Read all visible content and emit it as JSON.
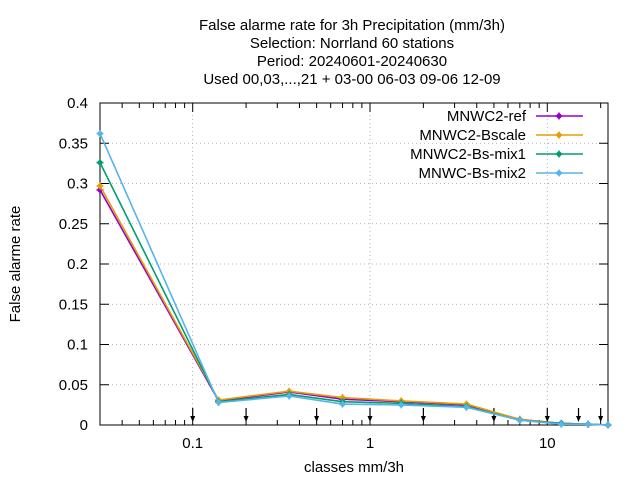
{
  "chart_data": {
    "type": "line",
    "title_lines": [
      "False alarme rate  for 3h Precipitation (mm/3h)",
      "Selection: Norrland     60 stations",
      "Period: 20240601-20240630",
      "Used 00,03,...,21 + 03-00 06-03 09-06 12-09"
    ],
    "xlabel": "classes mm/3h",
    "ylabel": "False alarme rate",
    "xscale": "log",
    "xlim": [
      0.03,
      22
    ],
    "ylim": [
      0,
      0.4
    ],
    "yticks": [
      {
        "value": 0,
        "label": "0"
      },
      {
        "value": 0.05,
        "label": "0.05"
      },
      {
        "value": 0.1,
        "label": "0.1"
      },
      {
        "value": 0.15,
        "label": "0.15"
      },
      {
        "value": 0.2,
        "label": "0.2"
      },
      {
        "value": 0.25,
        "label": "0.25"
      },
      {
        "value": 0.3,
        "label": "0.3"
      },
      {
        "value": 0.35,
        "label": "0.35"
      },
      {
        "value": 0.4,
        "label": "0.4"
      }
    ],
    "xticks": [
      {
        "value": 0.1,
        "label": "0.1"
      },
      {
        "value": 1,
        "label": "1"
      },
      {
        "value": 10,
        "label": "10"
      }
    ],
    "grid": true,
    "legend_position": "top-right",
    "threshold_arrows": [
      0.1,
      0.2,
      0.5,
      1,
      2,
      5,
      10,
      15,
      20
    ],
    "x": [
      0.03,
      0.14,
      0.35,
      0.7,
      1.5,
      3.5,
      7,
      12,
      17,
      22
    ],
    "series": [
      {
        "name": "MNWC2-ref",
        "color": "#9400d3",
        "marker": "plus",
        "values": [
          0.292,
          0.03,
          0.041,
          0.032,
          0.029,
          0.025,
          0.007,
          0.002,
          0.001,
          0.0
        ]
      },
      {
        "name": "MNWC2-Bscale",
        "color": "#e69f00",
        "marker": "plus",
        "values": [
          0.297,
          0.031,
          0.042,
          0.034,
          0.03,
          0.026,
          0.007,
          0.002,
          0.001,
          0.0
        ]
      },
      {
        "name": "MNWC2-Bs-mix1",
        "color": "#009e73",
        "marker": "plus",
        "values": [
          0.326,
          0.029,
          0.038,
          0.029,
          0.027,
          0.023,
          0.006,
          0.002,
          0.001,
          0.0
        ]
      },
      {
        "name": "MNWC-Bs-mix2",
        "color": "#56b4e9",
        "marker": "plus",
        "values": [
          0.362,
          0.028,
          0.036,
          0.026,
          0.025,
          0.022,
          0.006,
          0.001,
          0.001,
          0.0
        ]
      }
    ]
  }
}
